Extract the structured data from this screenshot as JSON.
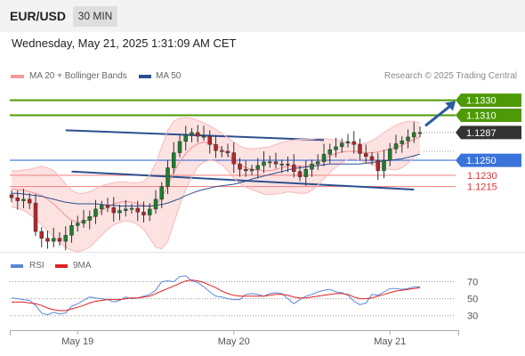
{
  "header": {
    "symbol": "EUR/USD",
    "timeframe": "30 MIN"
  },
  "timestamp": "Wednesday, May 21, 2025 1:31:09 AM CET",
  "legend": {
    "items": [
      {
        "label": "MA 20 + Bollinger Bands",
        "color": "#f49a9a"
      },
      {
        "label": "MA 50",
        "color": "#2c4f8f"
      }
    ]
  },
  "credit": "Research © 2025 Trading Central",
  "rsi_legend": {
    "items": [
      {
        "label": "RSI",
        "color": "#5b86d6"
      },
      {
        "label": "9MA",
        "color": "#e02020"
      }
    ]
  },
  "colors": {
    "resistance": "#4e9a06",
    "support": "#f08a8a",
    "pivot": "#3a73d9",
    "last": "#333333",
    "trend": "#2c4f8f",
    "arrow": "#2c5aa0"
  },
  "chart_data": [
    {
      "type": "line",
      "title": "",
      "xlabel": "",
      "ylabel": "",
      "x_ticks": [
        "May 19",
        "May 20",
        "May 21"
      ],
      "ylim": [
        1.1135,
        1.1345
      ],
      "price_levels": [
        {
          "kind": "resistance",
          "value": 1.133,
          "label": "1.1330"
        },
        {
          "kind": "resistance",
          "value": 1.131,
          "label": "1.1310"
        },
        {
          "kind": "last",
          "value": 1.1287,
          "label": "1.1287"
        },
        {
          "kind": "pivot",
          "value": 1.125,
          "label": "1.1250"
        },
        {
          "kind": "support",
          "value": 1.123,
          "label": "1.1230"
        },
        {
          "kind": "support",
          "value": 1.1215,
          "label": "1.1215"
        }
      ],
      "series": [
        {
          "name": "MA 20 + Bollinger Bands",
          "values": [
            1.1212,
            1.1211,
            1.121,
            1.1208,
            1.1206,
            1.1203,
            1.1198,
            1.1192,
            1.1184,
            1.1176,
            1.117,
            1.1167,
            1.1168,
            1.1171,
            1.1177,
            1.1183,
            1.1188,
            1.1192,
            1.1194,
            1.1195,
            1.1194,
            1.1192,
            1.119,
            1.1188,
            1.119,
            1.12,
            1.1216,
            1.1234,
            1.1248,
            1.1259,
            1.1267,
            1.1272,
            1.1274,
            1.1273,
            1.127,
            1.1265,
            1.1258,
            1.125,
            1.1244,
            1.124,
            1.1238,
            1.1237,
            1.1236,
            1.1236,
            1.1238,
            1.124,
            1.1242,
            1.1242,
            1.1242,
            1.1242,
            1.1244,
            1.1248,
            1.1252,
            1.1256,
            1.1259,
            1.1261,
            1.1262,
            1.1262,
            1.1261,
            1.126,
            1.126,
            1.1261,
            1.1263,
            1.1265,
            1.1267,
            1.127,
            1.1274,
            1.1278,
            1.1281
          ],
          "upper": [
            1.1236,
            1.1236,
            1.1237,
            1.1238,
            1.124,
            1.1242,
            1.124,
            1.1236,
            1.1228,
            1.1218,
            1.121,
            1.1206,
            1.1206,
            1.1208,
            1.1212,
            1.1216,
            1.1218,
            1.122,
            1.1221,
            1.1221,
            1.122,
            1.122,
            1.1222,
            1.123,
            1.1246,
            1.1268,
            1.129,
            1.1302,
            1.1306,
            1.1307,
            1.1306,
            1.1303,
            1.13,
            1.1296,
            1.1291,
            1.1286,
            1.128,
            1.1274,
            1.1269,
            1.1266,
            1.1265,
            1.1266,
            1.1267,
            1.1268,
            1.1271,
            1.1274,
            1.1276,
            1.1277,
            1.1278,
            1.1278,
            1.1278,
            1.1279,
            1.1279,
            1.1278,
            1.1277,
            1.1275,
            1.1273,
            1.1272,
            1.1272,
            1.1273,
            1.1276,
            1.1281,
            1.1287,
            1.1292,
            1.1297,
            1.13,
            1.1302,
            1.1302,
            1.13
          ],
          "lower": [
            1.1188,
            1.1186,
            1.1183,
            1.1178,
            1.1172,
            1.1164,
            1.1156,
            1.1148,
            1.114,
            1.1134,
            1.113,
            1.1128,
            1.113,
            1.1134,
            1.1142,
            1.115,
            1.1158,
            1.1164,
            1.1167,
            1.1169,
            1.1168,
            1.1164,
            1.1158,
            1.1146,
            1.1134,
            1.1132,
            1.1142,
            1.1166,
            1.119,
            1.1211,
            1.1228,
            1.1241,
            1.1248,
            1.125,
            1.1249,
            1.1244,
            1.1236,
            1.1226,
            1.1219,
            1.1214,
            1.1211,
            1.1208,
            1.1205,
            1.1204,
            1.1205,
            1.1206,
            1.1208,
            1.1207,
            1.1206,
            1.1206,
            1.121,
            1.1217,
            1.1225,
            1.1234,
            1.1241,
            1.1247,
            1.1251,
            1.1252,
            1.125,
            1.1247,
            1.1244,
            1.1241,
            1.1239,
            1.1238,
            1.1237,
            1.124,
            1.1246,
            1.1254,
            1.1262
          ]
        },
        {
          "name": "MA 50",
          "values": [
            1.1206,
            1.1206,
            1.1205,
            1.1204,
            1.1203,
            1.1202,
            1.12,
            1.1198,
            1.1196,
            1.1194,
            1.1193,
            1.1192,
            1.1192,
            1.1192,
            1.1192,
            1.1191,
            1.119,
            1.119,
            1.1189,
            1.1189,
            1.1189,
            1.1189,
            1.1189,
            1.1189,
            1.119,
            1.1191,
            1.1193,
            1.1196,
            1.1199,
            1.1203,
            1.1206,
            1.1209,
            1.1211,
            1.1213,
            1.1215,
            1.1216,
            1.1217,
            1.1218,
            1.122,
            1.1222,
            1.1225,
            1.1227,
            1.1229,
            1.1231,
            1.1233,
            1.1235,
            1.1237,
            1.1239,
            1.124,
            1.1241,
            1.1242,
            1.1243,
            1.1244,
            1.1245,
            1.1245,
            1.1245,
            1.1245,
            1.1245,
            1.1245,
            1.1246,
            1.1247,
            1.1248,
            1.1249,
            1.125,
            1.1251,
            1.1252,
            1.1254,
            1.1256,
            1.1258
          ]
        },
        {
          "name": "Price",
          "values": [
            1.12,
            1.1196,
            1.1198,
            1.1193,
            1.1155,
            1.1146,
            1.1142,
            1.1146,
            1.1142,
            1.115,
            1.1163,
            1.1166,
            1.117,
            1.1175,
            1.1185,
            1.119,
            1.1187,
            1.118,
            1.1183,
            1.1185,
            1.1186,
            1.1181,
            1.1177,
            1.1185,
            1.1198,
            1.1215,
            1.124,
            1.126,
            1.1275,
            1.1284,
            1.1287,
            1.1282,
            1.1282,
            1.1271,
            1.1263,
            1.1262,
            1.126,
            1.1245,
            1.1238,
            1.1236,
            1.1238,
            1.1243,
            1.1248,
            1.1248,
            1.1245,
            1.1245,
            1.1244,
            1.1235,
            1.1228,
            1.1238,
            1.1245,
            1.1248,
            1.1258,
            1.1264,
            1.1268,
            1.1273,
            1.1275,
            1.1271,
            1.1259,
            1.1255,
            1.125,
            1.1236,
            1.125,
            1.1265,
            1.1272,
            1.1276,
            1.1281,
            1.1287,
            1.1287
          ]
        }
      ],
      "trendlines": [
        {
          "from": [
            9,
            1.129
          ],
          "to": [
            52,
            1.1277
          ]
        },
        {
          "from": [
            10,
            1.1235
          ],
          "to": [
            67,
            1.1211
          ]
        }
      ]
    },
    {
      "type": "line",
      "title": "",
      "ylim": [
        15,
        80
      ],
      "y_ticks": [
        70,
        50,
        30
      ],
      "series": [
        {
          "name": "RSI",
          "values": [
            51,
            50,
            49,
            48,
            42,
            33,
            31,
            34,
            32,
            33,
            41,
            44,
            48,
            52,
            51,
            50,
            49,
            46,
            48,
            52,
            50,
            51,
            53,
            55,
            60,
            70,
            71,
            70,
            76,
            77,
            71,
            69,
            64,
            58,
            53,
            52,
            50,
            49,
            49,
            55,
            56,
            55,
            53,
            56,
            57,
            56,
            50,
            44,
            49,
            53,
            55,
            58,
            60,
            61,
            58,
            57,
            54,
            47,
            43,
            45,
            55,
            54,
            58,
            62,
            62,
            61,
            62,
            64,
            64
          ]
        },
        {
          "name": "9MA",
          "values": [
            46,
            46,
            46,
            45,
            44,
            42,
            39,
            37,
            36,
            36,
            38,
            40,
            42,
            45,
            47,
            48,
            49,
            49,
            49,
            50,
            51,
            51,
            52,
            53,
            56,
            59,
            62,
            65,
            68,
            71,
            72,
            71,
            69,
            66,
            63,
            59,
            56,
            54,
            53,
            53,
            53,
            53,
            53,
            54,
            55,
            55,
            54,
            52,
            51,
            51,
            52,
            53,
            54,
            55,
            56,
            56,
            55,
            52,
            50,
            50,
            51,
            53,
            55,
            57,
            59,
            60,
            61,
            62,
            63
          ]
        }
      ]
    }
  ]
}
